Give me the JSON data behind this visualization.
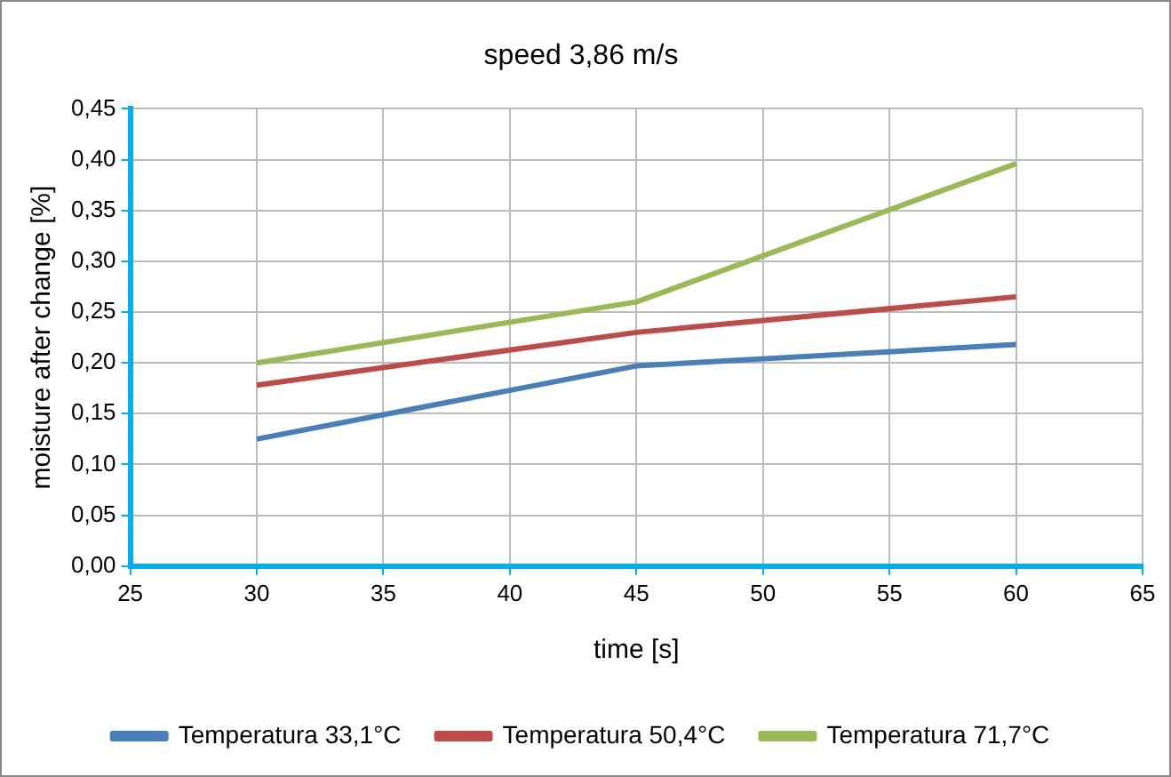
{
  "chart_data": {
    "type": "line",
    "title": "speed 3,86 m/s",
    "xlabel": "time [s]",
    "ylabel": "moisture after change [%]",
    "x": [
      30,
      45,
      60
    ],
    "series": [
      {
        "name": "Temperatura 33,1°C",
        "color": "#4a7ebb",
        "values": [
          0.125,
          0.197,
          0.218
        ]
      },
      {
        "name": "Temperatura 50,4°C",
        "color": "#be4b48",
        "values": [
          0.178,
          0.23,
          0.265
        ]
      },
      {
        "name": "Temperatura 71,7°C",
        "color": "#98b954",
        "values": [
          0.2,
          0.26,
          0.396
        ]
      }
    ],
    "xlim": [
      25,
      65
    ],
    "xticks": [
      25,
      30,
      35,
      40,
      45,
      50,
      55,
      60,
      65
    ],
    "ylim": [
      0,
      0.45
    ],
    "yticks": [
      {
        "value": 0,
        "label": "0,00"
      },
      {
        "value": 0.05,
        "label": "0,05"
      },
      {
        "value": 0.1,
        "label": "0,10"
      },
      {
        "value": 0.15,
        "label": "0,15"
      },
      {
        "value": 0.2,
        "label": "0,20"
      },
      {
        "value": 0.25,
        "label": "0,25"
      },
      {
        "value": 0.3,
        "label": "0,30"
      },
      {
        "value": 0.35,
        "label": "0,35"
      },
      {
        "value": 0.4,
        "label": "0,40"
      },
      {
        "value": 0.45,
        "label": "0,45"
      }
    ],
    "grid": true,
    "legend": "bottom",
    "marker": "none",
    "line_style": "solid"
  }
}
